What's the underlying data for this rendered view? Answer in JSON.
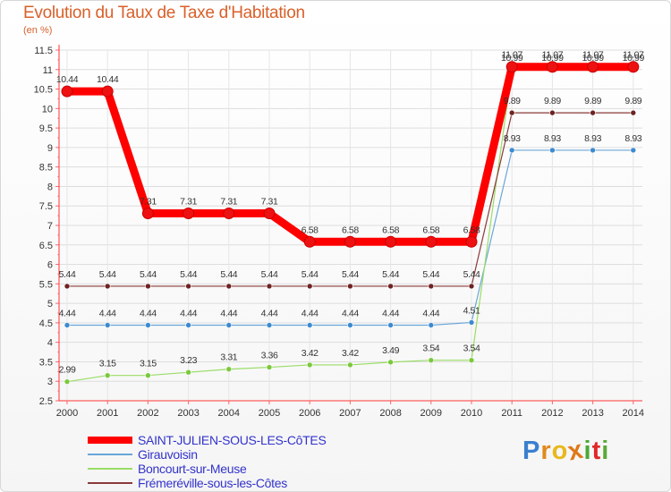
{
  "header": {
    "title": "Evolution du Taux de Taxe d'Habitation",
    "unit": "(en %)"
  },
  "chart_data": {
    "type": "line",
    "title": "Evolution du Taux de Taxe d'Habitation",
    "ylabel": "(en %)",
    "xlabel": "",
    "ylim": [
      2.5,
      11.5
    ],
    "ytick_step": 0.5,
    "grid": true,
    "categories": [
      "2000",
      "2001",
      "2002",
      "2003",
      "2004",
      "2005",
      "2006",
      "2007",
      "2008",
      "2009",
      "2010",
      "2011",
      "2012",
      "2013",
      "2014"
    ],
    "series": [
      {
        "name": "SAINT-JULIEN-SOUS-LES-CôTES",
        "color": "#ff0000",
        "point_color": "#ee1111",
        "emphasis": true,
        "values": [
          10.44,
          10.44,
          7.31,
          7.31,
          7.31,
          7.31,
          6.58,
          6.58,
          6.58,
          6.58,
          6.58,
          11.07,
          11.07,
          11.07,
          11.07
        ],
        "labels": [
          "10.44",
          "10.44",
          "7.31",
          "7.31",
          "7.31",
          "7.31",
          "6.58",
          "6.58",
          "6.58",
          "6.58",
          "6.58",
          "11.07",
          "11.07",
          "11.07",
          "11.07"
        ]
      },
      {
        "name": "Girauvoisin",
        "color": "#6aa6d9",
        "point_color": "#3d8ad0",
        "emphasis": false,
        "values": [
          4.44,
          4.44,
          4.44,
          4.44,
          4.44,
          4.44,
          4.44,
          4.44,
          4.44,
          4.44,
          4.51,
          8.93,
          8.93,
          8.93,
          8.93
        ],
        "labels": [
          "4.44",
          "4.44",
          "4.44",
          "4.44",
          "4.44",
          "4.44",
          "4.44",
          "4.44",
          "4.44",
          "4.44",
          "4.51",
          "8.93",
          "8.93",
          "8.93",
          "8.93"
        ]
      },
      {
        "name": "Boncourt-sur-Meuse",
        "color": "#99dd66",
        "point_color": "#7cc83c",
        "emphasis": false,
        "values": [
          2.99,
          3.15,
          3.15,
          3.23,
          3.31,
          3.36,
          3.42,
          3.42,
          3.49,
          3.54,
          3.54,
          10.99,
          10.99,
          10.99,
          10.99
        ],
        "labels": [
          "2.99",
          "3.15",
          "3.15",
          "3.23",
          "3.31",
          "3.36",
          "3.42",
          "3.42",
          "3.49",
          "3.54",
          "3.54",
          "10.99",
          "10.99",
          "10.99",
          "10.99"
        ]
      },
      {
        "name": "Frémeréville-sous-les-Côtes",
        "color": "#8b3a3a",
        "point_color": "#6e2222",
        "emphasis": false,
        "values": [
          5.44,
          5.44,
          5.44,
          5.44,
          5.44,
          5.44,
          5.44,
          5.44,
          5.44,
          5.44,
          5.44,
          9.89,
          9.89,
          9.89,
          9.89
        ],
        "labels": [
          "5.44",
          "5.44",
          "5.44",
          "5.44",
          "5.44",
          "5.44",
          "5.44",
          "5.44",
          "5.44",
          "5.44",
          "5.44",
          "9.89",
          "9.89",
          "9.89",
          "9.89"
        ]
      }
    ],
    "legend_position": "bottom-left"
  },
  "legend": {
    "items": [
      {
        "label": "SAINT-JULIEN-SOUS-LES-CôTES"
      },
      {
        "label": "Girauvoisin"
      },
      {
        "label": "Boncourt-sur-Meuse"
      },
      {
        "label": "Frémeréville-sous-les-Côtes"
      }
    ]
  },
  "brand": {
    "letters": [
      "P",
      "r",
      "o",
      "x",
      "i",
      "t",
      "i"
    ],
    "colors": [
      "#3a7fd0",
      "#e08a1e",
      "#e8b81c",
      "#e07818",
      "#4aa838",
      "#e02828",
      "#5aa838"
    ]
  }
}
